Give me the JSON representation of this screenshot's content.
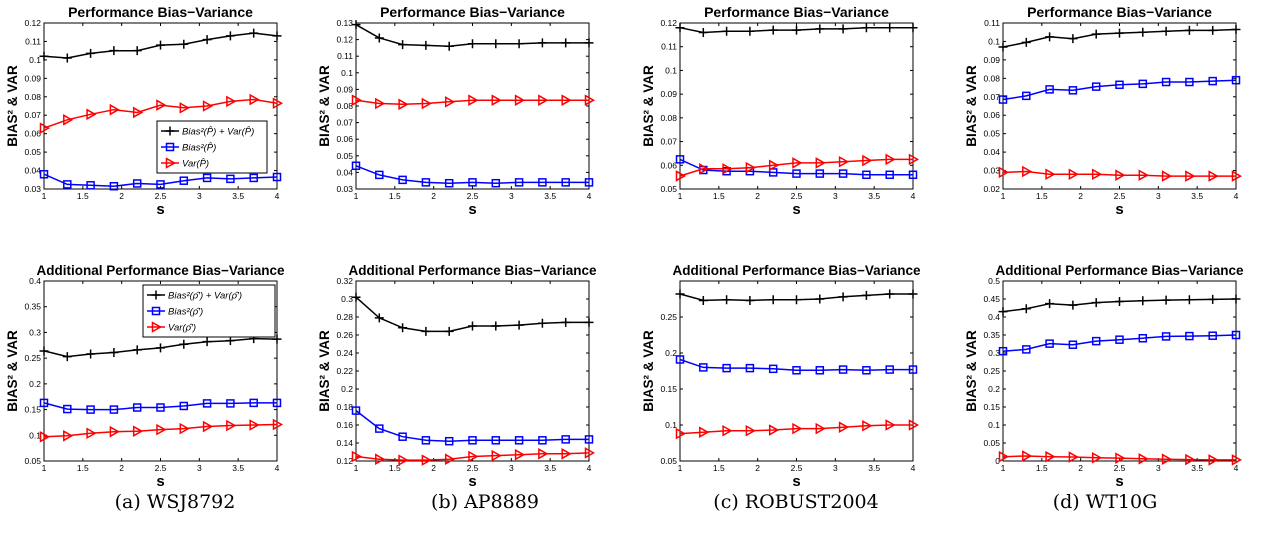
{
  "captions": [
    "(a) WSJ8792",
    "(b) AP8889",
    "(c) ROBUST2004",
    "(d) WT10G"
  ],
  "colors": {
    "total": "#000000",
    "bias": "#0000ff",
    "var": "#ff0000"
  },
  "chart_data": [
    {
      "type": "line",
      "title": "Performance Bias−Variance",
      "xlabel": "s",
      "ylabel": "BIAS² & VAR",
      "xlim": [
        1,
        4
      ],
      "ylim": [
        0.03,
        0.12
      ],
      "xticks": [
        "1",
        "1.5",
        "2",
        "2.5",
        "3",
        "3.5",
        "4"
      ],
      "yticks": [
        "0.03",
        "0.04",
        "0.05",
        "0.06",
        "0.07",
        "0.08",
        "0.09",
        "0.1",
        "0.11",
        "0.12"
      ],
      "x": [
        1,
        1.3,
        1.6,
        1.9,
        2.2,
        2.5,
        2.8,
        3.1,
        3.4,
        3.7,
        4
      ],
      "legend": {
        "position": "middle-right",
        "entries": [
          "Bias²(P̂) + Var(P̂)",
          "Bias²(P̂)",
          "Var(P̂)"
        ]
      },
      "series": [
        {
          "key": "total",
          "marker": "plus",
          "values": [
            0.102,
            0.101,
            0.1035,
            0.105,
            0.105,
            0.108,
            0.1085,
            0.111,
            0.113,
            0.1145,
            0.113
          ]
        },
        {
          "key": "bias",
          "marker": "square",
          "values": [
            0.038,
            0.0325,
            0.032,
            0.0315,
            0.033,
            0.0325,
            0.0345,
            0.036,
            0.0355,
            0.036,
            0.0365
          ]
        },
        {
          "key": "var",
          "marker": "triangle",
          "values": [
            0.063,
            0.0675,
            0.0705,
            0.073,
            0.0715,
            0.0755,
            0.074,
            0.075,
            0.0775,
            0.0785,
            0.0765
          ]
        }
      ]
    },
    {
      "type": "line",
      "title": "Performance Bias−Variance",
      "xlabel": "s",
      "ylabel": "BIAS² & VAR",
      "xlim": [
        1,
        4
      ],
      "ylim": [
        0.03,
        0.13
      ],
      "xticks": [
        "1",
        "1.5",
        "2",
        "2.5",
        "3",
        "3.5",
        "4"
      ],
      "yticks": [
        "0.03",
        "0.04",
        "0.05",
        "0.06",
        "0.07",
        "0.08",
        "0.09",
        "0.1",
        "0.11",
        "0.12",
        "0.13"
      ],
      "x": [
        1,
        1.3,
        1.6,
        1.9,
        2.2,
        2.5,
        2.8,
        3.1,
        3.4,
        3.7,
        4
      ],
      "series": [
        {
          "key": "total",
          "marker": "plus",
          "values": [
            0.129,
            0.121,
            0.117,
            0.1165,
            0.116,
            0.1175,
            0.1175,
            0.1175,
            0.118,
            0.118,
            0.118
          ]
        },
        {
          "key": "bias",
          "marker": "square",
          "values": [
            0.044,
            0.0385,
            0.0355,
            0.034,
            0.0335,
            0.034,
            0.0335,
            0.034,
            0.034,
            0.034,
            0.034
          ]
        },
        {
          "key": "var",
          "marker": "triangle",
          "values": [
            0.0835,
            0.0815,
            0.081,
            0.0815,
            0.0825,
            0.0835,
            0.0835,
            0.0835,
            0.0835,
            0.0835,
            0.0835
          ]
        }
      ]
    },
    {
      "type": "line",
      "title": "Performance Bias−Variance",
      "xlabel": "s",
      "ylabel": "BIAS² & VAR",
      "xlim": [
        1,
        4
      ],
      "ylim": [
        0.05,
        0.12
      ],
      "xticks": [
        "1",
        "1.5",
        "2",
        "2.5",
        "3",
        "3.5",
        "4"
      ],
      "yticks": [
        "0.05",
        "0.06",
        "0.07",
        "0.08",
        "0.09",
        "0.1",
        "0.11",
        "0.12"
      ],
      "x": [
        1,
        1.3,
        1.6,
        1.9,
        2.2,
        2.5,
        2.8,
        3.1,
        3.4,
        3.7,
        4
      ],
      "series": [
        {
          "key": "total",
          "marker": "plus",
          "values": [
            0.118,
            0.116,
            0.1165,
            0.1165,
            0.117,
            0.117,
            0.1175,
            0.1175,
            0.118,
            0.118,
            0.118
          ]
        },
        {
          "key": "bias",
          "marker": "square",
          "values": [
            0.0625,
            0.058,
            0.0575,
            0.0575,
            0.057,
            0.0565,
            0.0565,
            0.0565,
            0.056,
            0.056,
            0.056
          ]
        },
        {
          "key": "var",
          "marker": "triangle",
          "values": [
            0.0555,
            0.0585,
            0.0585,
            0.059,
            0.06,
            0.061,
            0.061,
            0.0615,
            0.062,
            0.0625,
            0.0625
          ]
        }
      ]
    },
    {
      "type": "line",
      "title": "Performance Bias−Variance",
      "xlabel": "s",
      "ylabel": "BIAS² & VAR",
      "xlim": [
        1,
        4
      ],
      "ylim": [
        0.02,
        0.11
      ],
      "xticks": [
        "1",
        "1.5",
        "2",
        "2.5",
        "3",
        "3.5",
        "4"
      ],
      "yticks": [
        "0.02",
        "0.03",
        "0.04",
        "0.05",
        "0.06",
        "0.07",
        "0.08",
        "0.09",
        "0.1",
        "0.11"
      ],
      "x": [
        1,
        1.3,
        1.6,
        1.9,
        2.2,
        2.5,
        2.8,
        3.1,
        3.4,
        3.7,
        4
      ],
      "series": [
        {
          "key": "total",
          "marker": "plus",
          "values": [
            0.097,
            0.0995,
            0.1025,
            0.1015,
            0.104,
            0.1045,
            0.105,
            0.1055,
            0.106,
            0.106,
            0.1065
          ]
        },
        {
          "key": "bias",
          "marker": "square",
          "values": [
            0.0685,
            0.0705,
            0.074,
            0.0735,
            0.0755,
            0.0765,
            0.077,
            0.078,
            0.078,
            0.0785,
            0.079
          ]
        },
        {
          "key": "var",
          "marker": "triangle",
          "values": [
            0.029,
            0.0295,
            0.028,
            0.028,
            0.028,
            0.0275,
            0.0275,
            0.027,
            0.027,
            0.027,
            0.027
          ]
        }
      ]
    },
    {
      "type": "line",
      "title": "Additional Performance Bias−Variance",
      "xlabel": "s",
      "ylabel": "BIAS² & VAR",
      "xlim": [
        1,
        4
      ],
      "ylim": [
        0.05,
        0.4
      ],
      "xticks": [
        "1",
        "1.5",
        "2",
        "2.5",
        "3",
        "3.5",
        "4"
      ],
      "yticks": [
        "0.05",
        "0.1",
        "0.15",
        "0.2",
        "0.25",
        "0.3",
        "0.35",
        "0.4"
      ],
      "x": [
        1,
        1.3,
        1.6,
        1.9,
        2.2,
        2.5,
        2.8,
        3.1,
        3.4,
        3.7,
        4
      ],
      "legend": {
        "position": "top-right",
        "entries": [
          "Bias²(ρ̂′) + Var(ρ̂′)",
          "Bias²(ρ̂′)",
          "Var(ρ̂′)"
        ]
      },
      "series": [
        {
          "key": "total",
          "marker": "plus",
          "values": [
            0.264,
            0.253,
            0.258,
            0.261,
            0.266,
            0.27,
            0.277,
            0.282,
            0.284,
            0.288,
            0.287
          ]
        },
        {
          "key": "bias",
          "marker": "square",
          "values": [
            0.163,
            0.151,
            0.15,
            0.15,
            0.154,
            0.154,
            0.157,
            0.162,
            0.162,
            0.163,
            0.163
          ]
        },
        {
          "key": "var",
          "marker": "triangle",
          "values": [
            0.097,
            0.099,
            0.104,
            0.107,
            0.108,
            0.111,
            0.113,
            0.117,
            0.119,
            0.12,
            0.121
          ]
        }
      ]
    },
    {
      "type": "line",
      "title": "Additional Performance Bias−Variance",
      "xlabel": "s",
      "ylabel": "BIAS² & VAR",
      "xlim": [
        1,
        4
      ],
      "ylim": [
        0.12,
        0.32
      ],
      "xticks": [
        "1",
        "1.5",
        "2",
        "2.5",
        "3",
        "3.5",
        "4"
      ],
      "yticks": [
        "0.12",
        "0.14",
        "0.16",
        "0.18",
        "0.2",
        "0.22",
        "0.24",
        "0.26",
        "0.28",
        "0.3",
        "0.32"
      ],
      "x": [
        1,
        1.3,
        1.6,
        1.9,
        2.2,
        2.5,
        2.8,
        3.1,
        3.4,
        3.7,
        4
      ],
      "series": [
        {
          "key": "total",
          "marker": "plus",
          "values": [
            0.302,
            0.279,
            0.268,
            0.264,
            0.264,
            0.27,
            0.27,
            0.271,
            0.273,
            0.274,
            0.274
          ]
        },
        {
          "key": "bias",
          "marker": "square",
          "values": [
            0.176,
            0.156,
            0.147,
            0.143,
            0.142,
            0.143,
            0.143,
            0.143,
            0.143,
            0.144,
            0.144
          ]
        },
        {
          "key": "var",
          "marker": "triangle",
          "values": [
            0.125,
            0.122,
            0.121,
            0.121,
            0.122,
            0.125,
            0.126,
            0.127,
            0.128,
            0.128,
            0.129
          ]
        }
      ]
    },
    {
      "type": "line",
      "title": "Additional Performance Bias−Variance",
      "xlabel": "s",
      "ylabel": "BIAS² & VAR",
      "xlim": [
        1,
        4
      ],
      "ylim": [
        0.05,
        0.3
      ],
      "xticks": [
        "1",
        "1.5",
        "2",
        "2.5",
        "3",
        "3.5",
        "4"
      ],
      "yticks": [
        "0.05",
        "0.1",
        "0.15",
        "0.2",
        "0.25"
      ],
      "x": [
        1,
        1.3,
        1.6,
        1.9,
        2.2,
        2.5,
        2.8,
        3.1,
        3.4,
        3.7,
        4
      ],
      "series": [
        {
          "key": "total",
          "marker": "plus",
          "values": [
            0.282,
            0.273,
            0.274,
            0.273,
            0.274,
            0.274,
            0.275,
            0.278,
            0.28,
            0.282,
            0.282
          ]
        },
        {
          "key": "bias",
          "marker": "square",
          "values": [
            0.191,
            0.18,
            0.179,
            0.179,
            0.178,
            0.176,
            0.176,
            0.177,
            0.176,
            0.177,
            0.177
          ]
        },
        {
          "key": "var",
          "marker": "triangle",
          "values": [
            0.088,
            0.09,
            0.092,
            0.092,
            0.093,
            0.095,
            0.095,
            0.097,
            0.099,
            0.1,
            0.1
          ]
        }
      ]
    },
    {
      "type": "line",
      "title": "Additional Performance Bias−Variance",
      "xlabel": "s",
      "ylabel": "BIAS² & VAR",
      "xlim": [
        1,
        4
      ],
      "ylim": [
        0,
        0.5
      ],
      "xticks": [
        "1",
        "1.5",
        "2",
        "2.5",
        "3",
        "3.5",
        "4"
      ],
      "yticks": [
        "0",
        "0.05",
        "0.1",
        "0.15",
        "0.2",
        "0.25",
        "0.3",
        "0.35",
        "0.4",
        "0.45",
        "0.5"
      ],
      "x": [
        1,
        1.3,
        1.6,
        1.9,
        2.2,
        2.5,
        2.8,
        3.1,
        3.4,
        3.7,
        4
      ],
      "series": [
        {
          "key": "total",
          "marker": "plus",
          "values": [
            0.415,
            0.423,
            0.437,
            0.433,
            0.44,
            0.443,
            0.445,
            0.447,
            0.448,
            0.449,
            0.45
          ]
        },
        {
          "key": "bias",
          "marker": "square",
          "values": [
            0.305,
            0.31,
            0.326,
            0.323,
            0.333,
            0.337,
            0.341,
            0.346,
            0.347,
            0.348,
            0.35
          ]
        },
        {
          "key": "var",
          "marker": "triangle",
          "values": [
            0.012,
            0.014,
            0.012,
            0.011,
            0.009,
            0.008,
            0.006,
            0.005,
            0.004,
            0.003,
            0.003
          ]
        }
      ]
    }
  ]
}
